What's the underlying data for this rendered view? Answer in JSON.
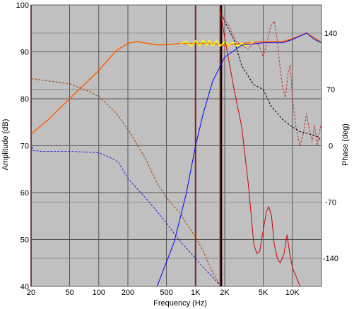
{
  "chart_data": {
    "type": "line",
    "xlabel": "Frequency (Hz)",
    "ylabel_left": "Amplitude (dB)",
    "ylabel_right": "Phase (deg)",
    "x_scale": "log",
    "xlim": [
      20,
      20000
    ],
    "ylim_left": [
      40,
      100
    ],
    "ylim_right": [
      -175,
      175
    ],
    "grid": true,
    "background": "#c0c0c0",
    "x_ticks": [
      20,
      50,
      100,
      200,
      500,
      1000,
      2000,
      5000,
      10000
    ],
    "x_tick_labels": [
      "20",
      "50",
      "100",
      "200",
      "500",
      "1K",
      "2K",
      "5K",
      "10K"
    ],
    "y_ticks_left": [
      40,
      50,
      60,
      70,
      80,
      90,
      100
    ],
    "y_tick_labels_left": [
      "40",
      "50",
      "60",
      "70",
      "80",
      "90",
      "100"
    ],
    "y_ticks_right": [
      -140,
      -70,
      0,
      70,
      140
    ],
    "y_tick_labels_right": [
      "-140",
      "-70",
      "0",
      "70",
      "140"
    ],
    "markers": [
      {
        "x": 20,
        "color": "#802020"
      },
      {
        "x": 1000,
        "color": "#802020"
      },
      {
        "x": 1800,
        "color": "#802020"
      },
      {
        "x": 1850,
        "color": "#000000"
      }
    ],
    "series": [
      {
        "axis": "left",
        "color": "#ff6000",
        "width": 1.5,
        "dash": "",
        "points": [
          [
            20,
            72.5
          ],
          [
            30,
            75.5
          ],
          [
            50,
            80
          ],
          [
            100,
            86
          ],
          [
            150,
            90.2
          ],
          [
            200,
            91.8
          ],
          [
            250,
            92.2
          ],
          [
            300,
            91.9
          ],
          [
            400,
            91.5
          ],
          [
            500,
            91.5
          ],
          [
            700,
            91.8
          ],
          [
            1000,
            91.8
          ],
          [
            1500,
            91.8
          ],
          [
            2000,
            91.4
          ],
          [
            3000,
            91.8
          ],
          [
            5000,
            92.2
          ],
          [
            8000,
            92.2
          ],
          [
            10000,
            92.8
          ],
          [
            14000,
            94
          ],
          [
            17000,
            93
          ],
          [
            20000,
            92
          ]
        ]
      },
      {
        "axis": "left",
        "color": "#ffff00",
        "width": 1.5,
        "dash": "",
        "points": [
          [
            700,
            91.7
          ],
          [
            800,
            92.3
          ],
          [
            900,
            91.2
          ],
          [
            1000,
            92.4
          ],
          [
            1100,
            91.3
          ],
          [
            1200,
            92.6
          ],
          [
            1300,
            91.4
          ],
          [
            1400,
            92.5
          ],
          [
            1500,
            91.3
          ],
          [
            1650,
            92.4
          ],
          [
            1800,
            91.2
          ],
          [
            2000,
            92.2
          ],
          [
            2200,
            91.3
          ],
          [
            2400,
            92.0
          ],
          [
            2700,
            91.2
          ],
          [
            3000,
            91.9
          ],
          [
            3300,
            91.3
          ],
          [
            3700,
            91.8
          ],
          [
            4000,
            92.1
          ]
        ]
      },
      {
        "axis": "left",
        "color": "#a04000",
        "width": 1,
        "dash": "3,2",
        "points": [
          [
            20,
            84.3
          ],
          [
            50,
            83.2
          ],
          [
            80,
            81.5
          ],
          [
            100,
            80.5
          ],
          [
            150,
            77
          ],
          [
            200,
            73.5
          ],
          [
            300,
            67.5
          ],
          [
            400,
            62
          ],
          [
            500,
            59
          ],
          [
            600,
            57
          ],
          [
            700,
            55.5
          ],
          [
            800,
            53.5
          ],
          [
            1000,
            50.5
          ],
          [
            1200,
            47.5
          ],
          [
            1500,
            43
          ],
          [
            1800,
            40.2
          ]
        ]
      },
      {
        "axis": "right",
        "color": "#0000ff",
        "width": 1,
        "dash": "",
        "points": [
          [
            400,
            -175
          ],
          [
            600,
            -120
          ],
          [
            800,
            -60
          ],
          [
            1000,
            0
          ],
          [
            1200,
            40
          ],
          [
            1500,
            80
          ],
          [
            2000,
            110
          ],
          [
            3000,
            125
          ],
          [
            5000,
            128
          ],
          [
            8000,
            128
          ],
          [
            10000,
            132
          ],
          [
            14000,
            140
          ],
          [
            17000,
            132
          ],
          [
            20000,
            128
          ]
        ]
      },
      {
        "axis": "left",
        "color": "#2020e0",
        "width": 1,
        "dash": "3,2",
        "points": [
          [
            20,
            70.5
          ],
          [
            21,
            69
          ],
          [
            25,
            68.8
          ],
          [
            50,
            68.8
          ],
          [
            100,
            68.5
          ],
          [
            130,
            67.5
          ],
          [
            160,
            66.5
          ],
          [
            200,
            63
          ],
          [
            300,
            59
          ],
          [
            400,
            56
          ],
          [
            500,
            53.5
          ],
          [
            700,
            49.5
          ],
          [
            1000,
            46
          ],
          [
            1200,
            44
          ],
          [
            1500,
            42
          ],
          [
            1800,
            40.2
          ]
        ]
      },
      {
        "axis": "left",
        "color": "#d00000",
        "width": 1,
        "dash": "",
        "points": [
          [
            1800,
            99
          ],
          [
            2000,
            93
          ],
          [
            2500,
            82
          ],
          [
            3000,
            74
          ],
          [
            3500,
            62
          ],
          [
            4000,
            49
          ],
          [
            4300,
            47
          ],
          [
            4600,
            47.5
          ],
          [
            5000,
            52
          ],
          [
            5400,
            56
          ],
          [
            5700,
            57
          ],
          [
            6100,
            55
          ],
          [
            6500,
            49
          ],
          [
            7000,
            46
          ],
          [
            7500,
            45
          ],
          [
            8200,
            47
          ],
          [
            8800,
            51
          ],
          [
            9400,
            47
          ],
          [
            10000,
            44
          ],
          [
            11000,
            42
          ],
          [
            12000,
            40
          ]
        ]
      },
      {
        "axis": "right",
        "color": "#c03030",
        "width": 1,
        "dash": "3,2",
        "points": [
          [
            1800,
            165
          ],
          [
            2200,
            150
          ],
          [
            2600,
            130
          ],
          [
            3000,
            125
          ],
          [
            3500,
            120
          ],
          [
            4000,
            128
          ],
          [
            4500,
            125
          ],
          [
            5000,
            110
          ],
          [
            5500,
            130
          ],
          [
            6000,
            150
          ],
          [
            6500,
            155
          ],
          [
            7000,
            130
          ],
          [
            7500,
            95
          ],
          [
            8000,
            70
          ],
          [
            8500,
            60
          ],
          [
            9000,
            90
          ],
          [
            9500,
            100
          ],
          [
            10000,
            60
          ],
          [
            11000,
            20
          ],
          [
            12000,
            0
          ],
          [
            13000,
            15
          ],
          [
            14000,
            40
          ],
          [
            15000,
            20
          ],
          [
            16000,
            5
          ],
          [
            17000,
            25
          ],
          [
            18000,
            0
          ],
          [
            19000,
            15
          ],
          [
            20000,
            30
          ]
        ]
      },
      {
        "axis": "left",
        "color": "#000000",
        "width": 1,
        "dash": "3,2",
        "points": [
          [
            1850,
            98
          ],
          [
            2000,
            96.5
          ],
          [
            2500,
            92.5
          ],
          [
            3000,
            87
          ],
          [
            4000,
            83
          ],
          [
            5000,
            82
          ],
          [
            6000,
            78.5
          ],
          [
            8000,
            75.5
          ],
          [
            10000,
            74
          ],
          [
            12000,
            73
          ],
          [
            15000,
            72.5
          ],
          [
            18000,
            72
          ],
          [
            20000,
            71
          ]
        ]
      }
    ]
  }
}
